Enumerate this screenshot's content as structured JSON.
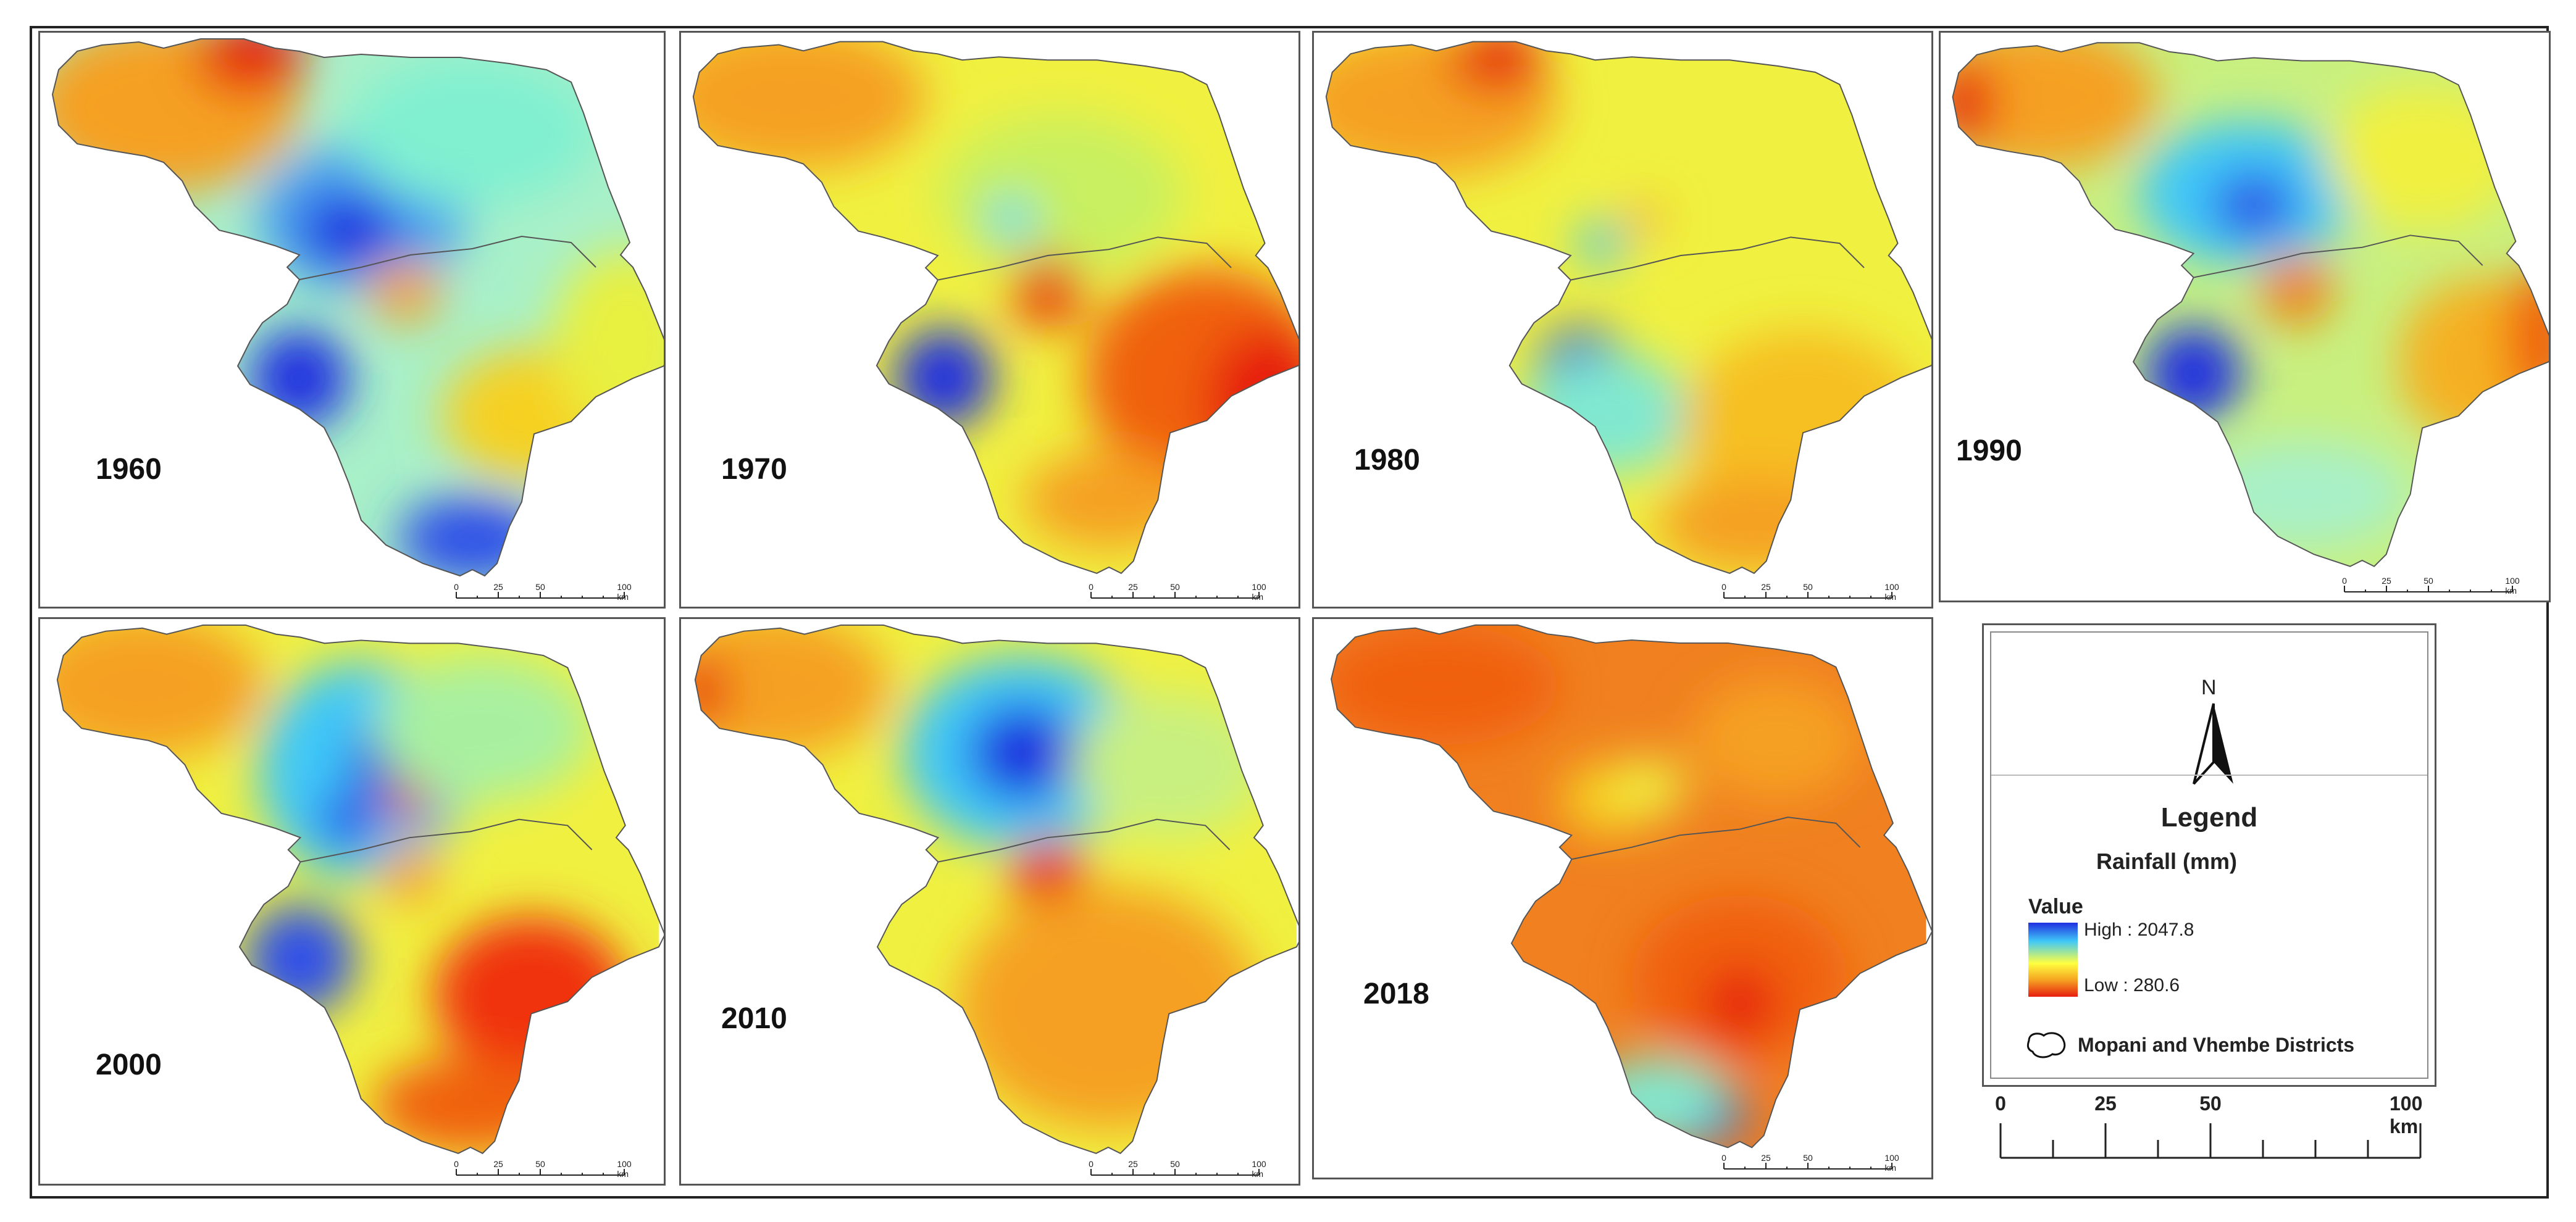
{
  "panels": [
    {
      "year": "1960"
    },
    {
      "year": "1970"
    },
    {
      "year": "1980"
    },
    {
      "year": "1990"
    },
    {
      "year": "2000"
    },
    {
      "year": "2010"
    },
    {
      "year": "2018"
    }
  ],
  "small_scale": {
    "ticks": [
      "0",
      "25",
      "50",
      "100 km"
    ]
  },
  "legend": {
    "north": "N",
    "title": "Legend",
    "subtitle": "Rainfall (mm)",
    "value_label": "Value",
    "high": "High : 2047.8",
    "low": "Low : 280.6",
    "districts": "Mopani and Vhembe Districts",
    "colors": {
      "high": "#1f2fe0",
      "mid": "#ffff40",
      "low": "#e61e10"
    }
  },
  "big_scale": {
    "ticks": [
      "0",
      "25",
      "50",
      "100 km"
    ]
  }
}
